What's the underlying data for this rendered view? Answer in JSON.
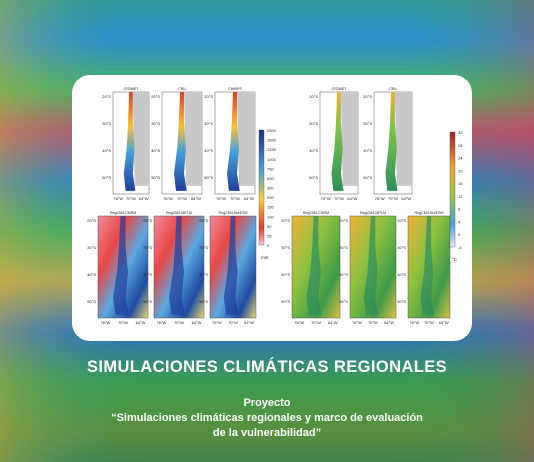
{
  "card": {
    "panels": [
      {
        "title": "CR2MET"
      },
      {
        "title": "CRU"
      },
      {
        "title": "CHIRPS"
      },
      {
        "title": "RegCM4-CNRM"
      },
      {
        "title": "RegCM4-MPI-M"
      },
      {
        "title": "RegCM4-NorESM"
      },
      {
        "title": "CR2MET"
      },
      {
        "title": "CRU"
      },
      {
        "title": "RegCM4-CNRM"
      },
      {
        "title": "RegCM4-MPI-M"
      },
      {
        "title": "RegCM4-NorESM"
      }
    ],
    "lat_labels": [
      "20°S",
      "30°S",
      "40°S",
      "50°S"
    ],
    "lon_labels": [
      "76°W",
      "70°W",
      "64°W"
    ],
    "precip_scale": {
      "ticks": [
        "2500",
        "1500",
        "1250",
        "1000",
        "750",
        "500",
        "300",
        "200",
        "150",
        "100",
        "50",
        "25",
        "0"
      ],
      "unit": "mm"
    },
    "temp_scale": {
      "ticks": [
        "32",
        "28",
        "24",
        "20",
        "16",
        "12",
        "8",
        "4",
        "0",
        "-4"
      ],
      "unit": "°C"
    }
  },
  "footer": {
    "title": "SIMULACIONES CLIMÁTICAS REGIONALES",
    "label": "Proyecto",
    "line1": "“Simulaciones climáticas regionales y marco de evaluación",
    "line2": "de la vulnerabilidad”"
  }
}
